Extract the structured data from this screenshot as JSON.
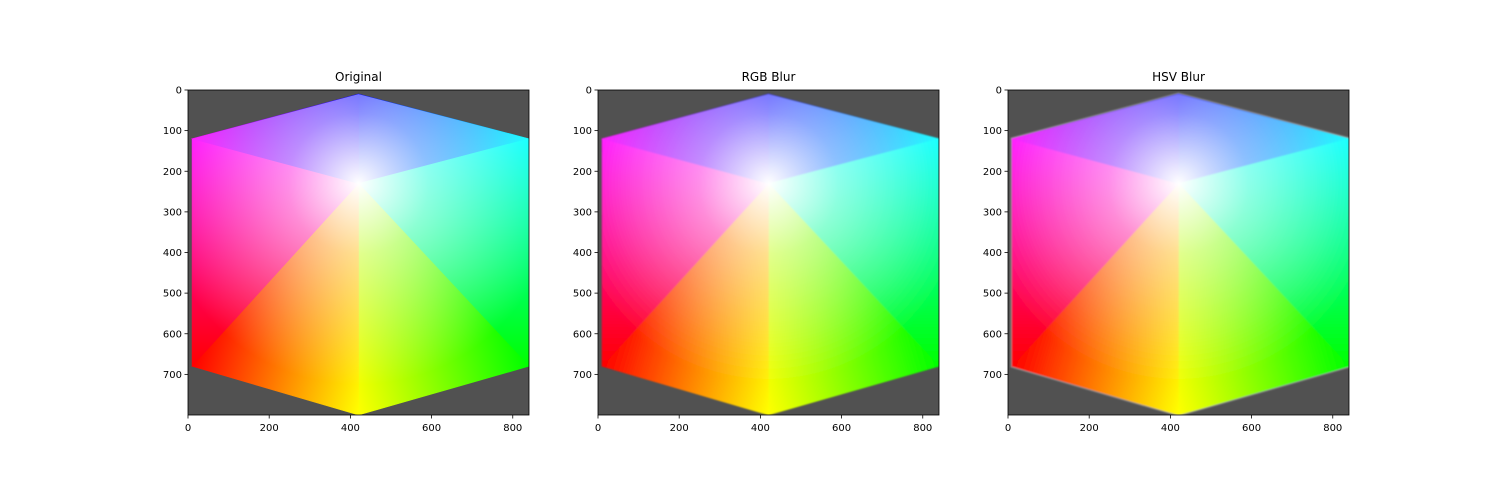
{
  "figure": {
    "background": "#ffffff",
    "image_background": "#515151"
  },
  "chart_data": [
    {
      "type": "image",
      "title": "Original",
      "xlim": [
        0,
        840
      ],
      "ylim": [
        800,
        0
      ],
      "xticks": [
        0,
        200,
        400,
        600,
        800
      ],
      "yticks": [
        0,
        100,
        200,
        300,
        400,
        500,
        600,
        700
      ],
      "content": "RGB colour cube viewed along the white-black diagonal: hexagon with corners red, magenta, blue, cyan, green, yellow and white centre",
      "hexagon_corners_xy": [
        [
          420,
          10
        ],
        [
          840,
          120
        ],
        [
          840,
          680
        ],
        [
          420,
          800
        ],
        [
          10,
          680
        ],
        [
          10,
          120
        ]
      ],
      "center_xy": [
        420,
        230
      ],
      "corner_colors": [
        "#0000ff",
        "#00ffff",
        "#00ff00",
        "#ffff00",
        "#ff0000",
        "#ff00ff"
      ],
      "edge_blur": false
    },
    {
      "type": "image",
      "title": "RGB Blur",
      "xlim": [
        0,
        840
      ],
      "ylim": [
        800,
        0
      ],
      "xticks": [
        0,
        200,
        400,
        600,
        800
      ],
      "yticks": [
        0,
        100,
        200,
        300,
        400,
        500,
        600,
        700
      ],
      "content": "Same colour cube with edges blurred in RGB space",
      "hexagon_corners_xy": [
        [
          420,
          10
        ],
        [
          840,
          120
        ],
        [
          840,
          680
        ],
        [
          420,
          800
        ],
        [
          10,
          680
        ],
        [
          10,
          120
        ]
      ],
      "center_xy": [
        420,
        230
      ],
      "corner_colors": [
        "#0000ff",
        "#00ffff",
        "#00ff00",
        "#ffff00",
        "#ff0000",
        "#ff00ff"
      ],
      "edge_blur": true
    },
    {
      "type": "image",
      "title": "HSV Blur",
      "xlim": [
        0,
        840
      ],
      "ylim": [
        800,
        0
      ],
      "xticks": [
        0,
        200,
        400,
        600,
        800
      ],
      "yticks": [
        0,
        100,
        200,
        300,
        400,
        500,
        600,
        700
      ],
      "content": "Same colour cube with edges blurred in HSV space (grey halo at the border)",
      "hexagon_corners_xy": [
        [
          420,
          10
        ],
        [
          840,
          120
        ],
        [
          840,
          680
        ],
        [
          420,
          800
        ],
        [
          10,
          680
        ],
        [
          10,
          120
        ]
      ],
      "center_xy": [
        420,
        230
      ],
      "corner_colors": [
        "#0000ff",
        "#00ffff",
        "#00ff00",
        "#ffff00",
        "#ff0000",
        "#ff00ff"
      ],
      "edge_blur": true
    }
  ]
}
